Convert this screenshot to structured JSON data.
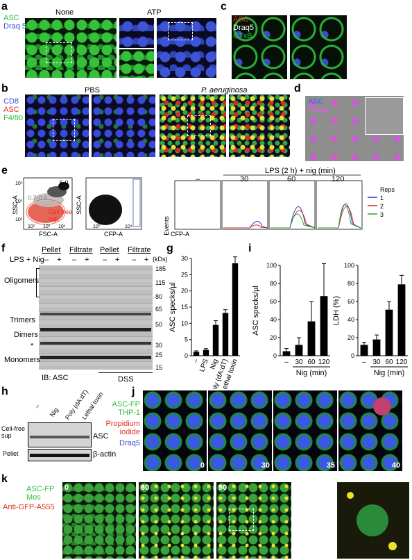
{
  "panels": {
    "a": {
      "label": "a",
      "stain_green": "ASC",
      "stain_blue": "Draq 5",
      "cond_left": "None",
      "cond_right": "ATP"
    },
    "b": {
      "label": "b",
      "stain_1": "CD8",
      "stain_2": "ASC",
      "stain_3": "F4/80",
      "cond_left": "PBS",
      "cond_right": "P. aeruginosa"
    },
    "c": {
      "label": "c",
      "stain_1": "ASC",
      "stain_2": "Draq5",
      "stain_3": "CTxB"
    },
    "d": {
      "label": "d",
      "stain_1": "ASC",
      "stain_2": "Draq5"
    },
    "e": {
      "label": "e",
      "gate_values": [
        "0.7-0.9",
        "2.0",
        "6.0"
      ],
      "gate_text": "Cell-free sup",
      "flow1_y": "SSC-A",
      "flow1_x": "FSC-A",
      "flow2_y": "SSC-A",
      "flow2_x": "CFP-A",
      "hist_y": "Events",
      "hist_x": "CFP-A",
      "header": "LPS (2 h)  + nig (min)",
      "cols": [
        "–",
        "30",
        "60",
        "120"
      ],
      "reps_title": "Reps",
      "reps": [
        "1",
        "2",
        "3"
      ],
      "ticks": [
        "10³",
        "10⁴",
        "10⁵",
        "10²",
        "10⁰"
      ]
    },
    "f": {
      "label": "f",
      "col_headers": [
        "Pellet",
        "Filtrate",
        "Pellet",
        "Filtrate"
      ],
      "lps_label": "LPS + Nig",
      "signs": [
        "–",
        "+",
        "–",
        "+",
        "–",
        "+",
        "–",
        "+"
      ],
      "bands": [
        "Oligomers",
        "Trimers",
        "Dimers",
        "Monomers"
      ],
      "star": "*",
      "kda": [
        "185",
        "115",
        "80",
        "65",
        "50",
        "30",
        "25",
        "15"
      ],
      "kda_unit": "(kDs)",
      "ib": "IB: ASC",
      "dss": "DSS"
    },
    "g": {
      "label": "g",
      "ylabel": "ASC specks/µl",
      "yticks": [
        "0",
        "5",
        "10",
        "15",
        "20",
        "25",
        "30"
      ]
    },
    "i": {
      "label": "i",
      "ylabel1": "ASC specks/µl",
      "ylabel2": "LDH (%)",
      "yticks1": [
        "0",
        "20",
        "40",
        "60",
        "80",
        "100"
      ],
      "yticks2": [
        "0",
        "20",
        "40",
        "60",
        "80",
        "100"
      ],
      "xlab": "Nig (min)"
    },
    "h": {
      "label": "h",
      "cols": [
        "–",
        "Nig",
        "Poly (dA:dT)",
        "Lethal toxin"
      ],
      "row1": "Cell-free sup",
      "row2": "Pellet",
      "right1": "ASC",
      "right2": "β-actin"
    },
    "j": {
      "label": "j",
      "stain_1": "ASC-FP THP-1",
      "stain_2": "Propidium iodide",
      "stain_3": "Draq5",
      "times": [
        "0",
        "30",
        "35",
        "40"
      ]
    },
    "k": {
      "label": "k",
      "stain_1": "ASC-FP Mos",
      "stain_2": "Anti-GFP-A555",
      "times": [
        "0",
        "60",
        "90"
      ]
    }
  },
  "chart_data": [
    {
      "type": "bar",
      "panel": "g",
      "categories": [
        "–",
        "LPS",
        "Nig",
        "Poly (dA:dT)",
        "Lethal toxin"
      ],
      "values": [
        1.2,
        1.8,
        9.5,
        13.2,
        28.5
      ],
      "errors": [
        0.3,
        0.4,
        1.3,
        1.0,
        2.0
      ],
      "ylabel": "ASC specks/µl",
      "ylim": [
        0,
        30
      ]
    },
    {
      "type": "bar",
      "panel": "i-left",
      "categories": [
        "–",
        "30",
        "60",
        "120"
      ],
      "values": [
        5,
        12,
        38,
        66
      ],
      "errors": [
        3,
        8,
        22,
        36
      ],
      "ylabel": "ASC specks/µl",
      "xlabel": "Nig (min)",
      "ylim": [
        0,
        100
      ]
    },
    {
      "type": "bar",
      "panel": "i-right",
      "categories": [
        "–",
        "30",
        "60",
        "120"
      ],
      "values": [
        12,
        18,
        51,
        79
      ],
      "errors": [
        3,
        5,
        9,
        10
      ],
      "ylabel": "LDH (%)",
      "xlabel": "Nig (min)",
      "ylim": [
        0,
        100
      ]
    }
  ],
  "colors": {
    "green": "#2fc03a",
    "blue": "#2b3bd0",
    "red": "#e03020",
    "magenta": "#d040d0",
    "rep1": "#1f3fc0",
    "rep2": "#d02a2a",
    "rep3": "#2aa02a"
  }
}
